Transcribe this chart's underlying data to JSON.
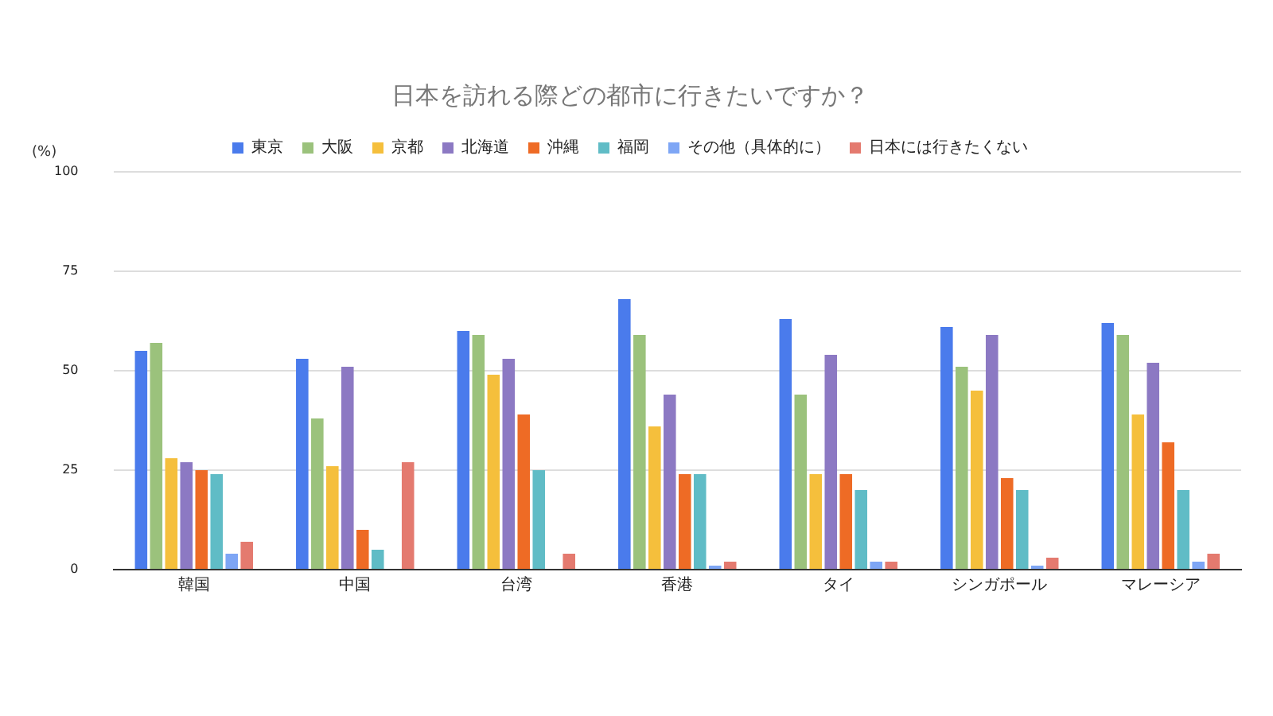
{
  "chart_data": {
    "type": "bar",
    "title": "日本を訪れる際どの都市に行きたいですか？",
    "ylabel": "(%)",
    "categories": [
      "韓国",
      "中国",
      "台湾",
      "香港",
      "タイ",
      "シンガポール",
      "マレーシア"
    ],
    "series": [
      {
        "name": "東京",
        "color": "#4a7bec",
        "values": [
          55,
          53,
          60,
          68,
          63,
          61,
          62
        ]
      },
      {
        "name": "大阪",
        "color": "#9bc27c",
        "values": [
          57,
          38,
          59,
          59,
          44,
          51,
          59
        ]
      },
      {
        "name": "京都",
        "color": "#f5bf3c",
        "values": [
          28,
          26,
          49,
          36,
          24,
          45,
          39
        ]
      },
      {
        "name": "北海道",
        "color": "#8c79c3",
        "values": [
          27,
          51,
          53,
          44,
          54,
          59,
          52
        ]
      },
      {
        "name": "沖縄",
        "color": "#ee6b25",
        "values": [
          25,
          10,
          39,
          24,
          24,
          23,
          32
        ]
      },
      {
        "name": "福岡",
        "color": "#60bcc6",
        "values": [
          24,
          5,
          25,
          24,
          20,
          20,
          20
        ]
      },
      {
        "name": "その他（具体的に）",
        "color": "#7ea6f5",
        "values": [
          4,
          0,
          0,
          1,
          2,
          1,
          2
        ]
      },
      {
        "name": "日本には行きたくない",
        "color": "#e47a6f",
        "values": [
          7,
          27,
          4,
          2,
          2,
          3,
          4
        ]
      }
    ],
    "ylim": [
      0,
      100
    ],
    "yticks": [
      0,
      25,
      50,
      75,
      100
    ],
    "grid": "y",
    "legend": "top"
  }
}
